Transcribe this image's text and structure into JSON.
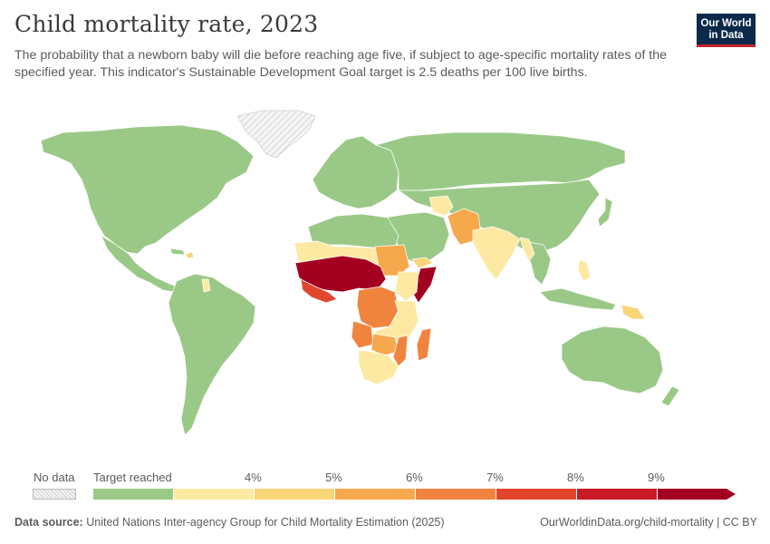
{
  "header": {
    "title": "Child mortality rate, 2023",
    "subtitle": "The probability that a newborn baby will die before reaching age five, if subject to age-specific mortality rates of the specified year. This indicator's Sustainable Development Goal target is 2.5 deaths per 100 live births."
  },
  "logo": {
    "line1": "Our World",
    "line2": "in Data",
    "bg_color": "#0b2a4a",
    "accent_color": "#c4232c"
  },
  "legend": {
    "no_data_label": "No data",
    "target_label": "Target reached",
    "ticks": [
      "4%",
      "5%",
      "6%",
      "7%",
      "8%",
      "9%"
    ],
    "colors": [
      "#9ac987",
      "#fde9a2",
      "#f8d577",
      "#f6a84c",
      "#f0843f",
      "#e1462d",
      "#c91a26",
      "#a30021"
    ]
  },
  "map_colors": {
    "ocean": "#ffffff",
    "border": "#ffffff",
    "no_data": "#e6e6e6"
  },
  "footer": {
    "source_label": "Data source:",
    "source_text": "United Nations Inter-agency Group for Child Mortality Estimation (2025)",
    "url": "OurWorldinData.org/child-mortality | CC BY"
  }
}
